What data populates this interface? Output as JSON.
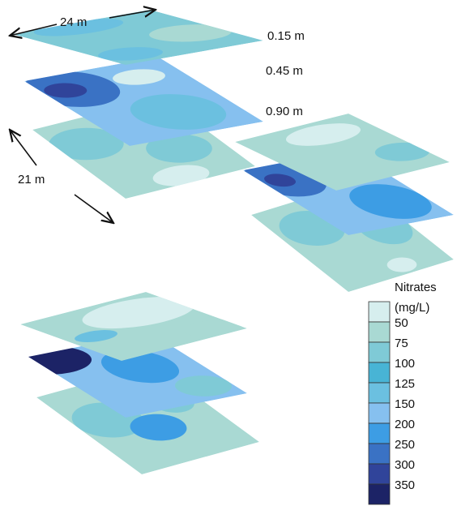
{
  "dimensions": {
    "width": "24 m",
    "depth": "21 m"
  },
  "depths": [
    "0.15 m",
    "0.45 m",
    "0.90 m"
  ],
  "legend": {
    "title": "Nitrates",
    "unit": "(mg/L)",
    "labels": [
      50,
      75,
      100,
      125,
      150,
      200,
      250,
      300,
      350
    ]
  }
}
